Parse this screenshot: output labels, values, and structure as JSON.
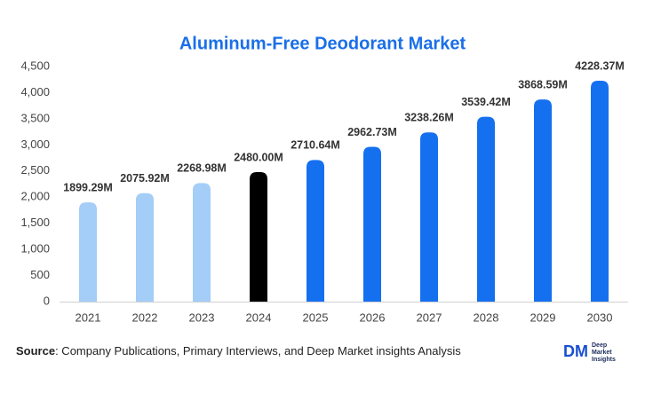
{
  "chart_data": {
    "type": "bar",
    "title": "Aluminum-Free Deodorant Market",
    "categories": [
      "2021",
      "2022",
      "2023",
      "2024",
      "2025",
      "2026",
      "2027",
      "2028",
      "2029",
      "2030"
    ],
    "values": [
      1899.29,
      2075.92,
      2268.98,
      2480.0,
      2710.64,
      2962.73,
      3238.26,
      3539.42,
      3868.59,
      4228.37
    ],
    "value_labels": [
      "1899.29M",
      "2075.92M",
      "2268.98M",
      "2480.00M",
      "2710.64M",
      "2962.73M",
      "3238.26M",
      "3539.42M",
      "3868.59M",
      "4228.37M"
    ],
    "colors": [
      "#a4cdf8",
      "#a4cdf8",
      "#a4cdf8",
      "#000000",
      "#1570ef",
      "#1570ef",
      "#1570ef",
      "#1570ef",
      "#1570ef",
      "#1570ef"
    ],
    "ylim": [
      0,
      4500
    ],
    "yticks": [
      0,
      500,
      {
        "value": 1000,
        "label": "1,000"
      },
      {
        "value": 1500,
        "label": "1,500"
      },
      {
        "value": 2000,
        "label": "2,000"
      },
      {
        "value": 2500,
        "label": "2,500"
      },
      {
        "value": 3000,
        "label": "3,000"
      },
      {
        "value": 3500,
        "label": "3,500"
      },
      {
        "value": 4000,
        "label": "4,000"
      },
      {
        "value": 4500,
        "label": "4,500"
      }
    ],
    "grid": false
  },
  "source": {
    "label": "Source",
    "text": ": Company Publications, Primary Interviews, and Deep Market insights Analysis"
  },
  "logo": {
    "mark": "DM",
    "lines": [
      "Deep",
      "Market",
      "Insights"
    ]
  }
}
